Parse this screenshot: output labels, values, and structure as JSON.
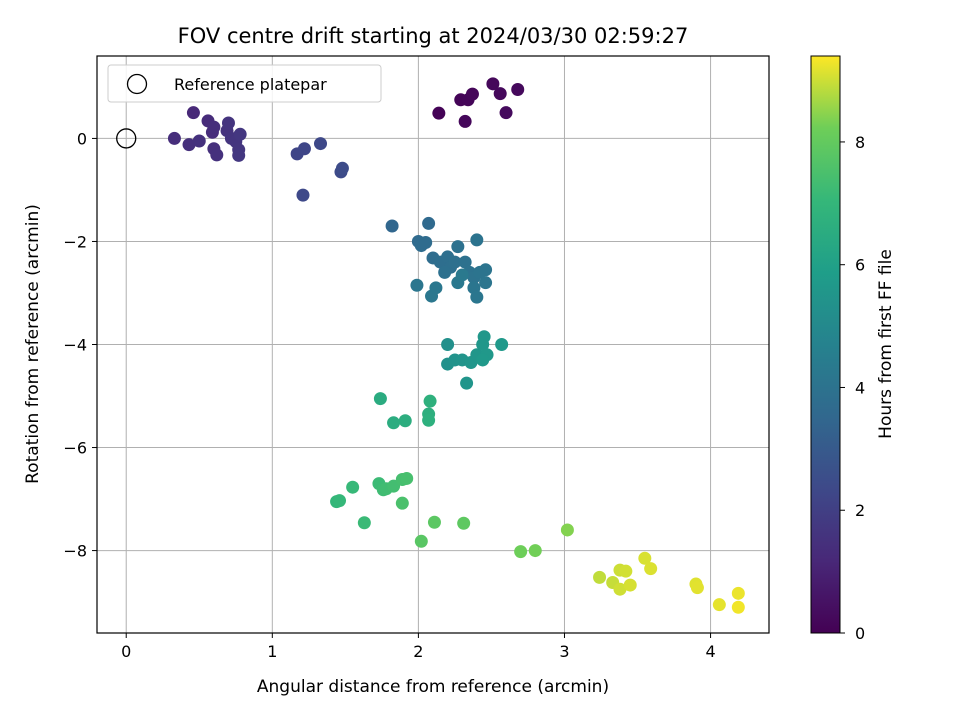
{
  "chart_data": {
    "type": "scatter",
    "title": "FOV centre drift starting at 2024/03/30 02:59:27",
    "xlabel": "Angular distance from reference (arcmin)",
    "ylabel": "Rotation from reference (arcmin)",
    "xlim": [
      -0.2,
      4.4
    ],
    "ylim": [
      -9.6,
      1.6
    ],
    "xticks": [
      0,
      1,
      2,
      3,
      4
    ],
    "yticks": [
      0,
      -2,
      -4,
      -6,
      -8
    ],
    "grid": true,
    "legend": {
      "location": "upper-left",
      "entries": [
        {
          "label": "Reference platepar",
          "marker": "open-circle"
        }
      ]
    },
    "reference": {
      "x": 0,
      "y": 0
    },
    "colorbar": {
      "label": "Hours from first FF file",
      "range": [
        0,
        9.4
      ],
      "ticks": [
        0,
        2,
        4,
        6,
        8
      ],
      "colormap": "viridis"
    },
    "points": [
      {
        "x": 2.14,
        "y": 0.49,
        "t": 0.05
      },
      {
        "x": 2.29,
        "y": 0.75,
        "t": 0.1
      },
      {
        "x": 2.34,
        "y": 0.75,
        "t": 0.12
      },
      {
        "x": 2.37,
        "y": 0.86,
        "t": 0.15
      },
      {
        "x": 2.32,
        "y": 0.33,
        "t": 0.18
      },
      {
        "x": 2.51,
        "y": 1.06,
        "t": 0.2
      },
      {
        "x": 2.56,
        "y": 0.87,
        "t": 0.22
      },
      {
        "x": 2.68,
        "y": 0.95,
        "t": 0.25
      },
      {
        "x": 2.6,
        "y": 0.5,
        "t": 0.28
      },
      {
        "x": 0.46,
        "y": 0.5,
        "t": 1.2
      },
      {
        "x": 0.33,
        "y": 0.0,
        "t": 1.4
      },
      {
        "x": 0.43,
        "y": -0.12,
        "t": 1.45
      },
      {
        "x": 0.5,
        "y": -0.05,
        "t": 1.5
      },
      {
        "x": 0.56,
        "y": 0.34,
        "t": 1.3
      },
      {
        "x": 0.59,
        "y": 0.12,
        "t": 1.35
      },
      {
        "x": 0.6,
        "y": 0.22,
        "t": 1.4
      },
      {
        "x": 0.6,
        "y": -0.2,
        "t": 1.45
      },
      {
        "x": 0.62,
        "y": -0.32,
        "t": 1.5
      },
      {
        "x": 0.69,
        "y": 0.15,
        "t": 1.55
      },
      {
        "x": 0.7,
        "y": 0.3,
        "t": 1.6
      },
      {
        "x": 0.72,
        "y": 0.0,
        "t": 1.62
      },
      {
        "x": 0.75,
        "y": -0.06,
        "t": 1.65
      },
      {
        "x": 0.77,
        "y": -0.22,
        "t": 1.68
      },
      {
        "x": 0.78,
        "y": 0.08,
        "t": 1.7
      },
      {
        "x": 0.77,
        "y": -0.33,
        "t": 1.72
      },
      {
        "x": 1.17,
        "y": -0.3,
        "t": 2.2
      },
      {
        "x": 1.22,
        "y": -0.2,
        "t": 2.25
      },
      {
        "x": 1.33,
        "y": -0.1,
        "t": 2.3
      },
      {
        "x": 1.21,
        "y": -1.1,
        "t": 2.35
      },
      {
        "x": 1.47,
        "y": -0.65,
        "t": 2.4
      },
      {
        "x": 1.48,
        "y": -0.58,
        "t": 2.45
      },
      {
        "x": 1.82,
        "y": -1.7,
        "t": 3.5
      },
      {
        "x": 2.07,
        "y": -1.65,
        "t": 3.6
      },
      {
        "x": 2.0,
        "y": -2.0,
        "t": 3.65
      },
      {
        "x": 2.02,
        "y": -2.08,
        "t": 3.7
      },
      {
        "x": 2.05,
        "y": -2.02,
        "t": 3.72
      },
      {
        "x": 2.1,
        "y": -2.32,
        "t": 3.75
      },
      {
        "x": 2.15,
        "y": -2.4,
        "t": 3.8
      },
      {
        "x": 2.2,
        "y": -2.3,
        "t": 3.82
      },
      {
        "x": 2.22,
        "y": -2.5,
        "t": 3.85
      },
      {
        "x": 2.25,
        "y": -2.4,
        "t": 3.88
      },
      {
        "x": 2.18,
        "y": -2.6,
        "t": 3.9
      },
      {
        "x": 2.27,
        "y": -2.1,
        "t": 3.92
      },
      {
        "x": 2.32,
        "y": -2.4,
        "t": 3.95
      },
      {
        "x": 2.35,
        "y": -2.6,
        "t": 3.98
      },
      {
        "x": 2.38,
        "y": -2.7,
        "t": 4.0
      },
      {
        "x": 2.4,
        "y": -1.97,
        "t": 4.02
      },
      {
        "x": 2.42,
        "y": -2.6,
        "t": 4.05
      },
      {
        "x": 2.46,
        "y": -2.55,
        "t": 4.08
      },
      {
        "x": 2.46,
        "y": -2.8,
        "t": 4.1
      },
      {
        "x": 2.38,
        "y": -2.9,
        "t": 4.12
      },
      {
        "x": 2.4,
        "y": -3.08,
        "t": 4.15
      },
      {
        "x": 1.99,
        "y": -2.85,
        "t": 4.18
      },
      {
        "x": 2.09,
        "y": -3.06,
        "t": 4.2
      },
      {
        "x": 2.12,
        "y": -2.9,
        "t": 4.22
      },
      {
        "x": 2.27,
        "y": -2.8,
        "t": 4.25
      },
      {
        "x": 2.3,
        "y": -2.65,
        "t": 4.28
      },
      {
        "x": 2.2,
        "y": -4.0,
        "t": 5.3
      },
      {
        "x": 2.2,
        "y": -4.38,
        "t": 5.35
      },
      {
        "x": 2.25,
        "y": -4.3,
        "t": 5.4
      },
      {
        "x": 2.3,
        "y": -4.3,
        "t": 5.45
      },
      {
        "x": 2.33,
        "y": -4.75,
        "t": 5.5
      },
      {
        "x": 2.36,
        "y": -4.35,
        "t": 5.52
      },
      {
        "x": 2.4,
        "y": -4.2,
        "t": 5.55
      },
      {
        "x": 2.44,
        "y": -4.0,
        "t": 5.58
      },
      {
        "x": 2.45,
        "y": -3.85,
        "t": 5.6
      },
      {
        "x": 2.47,
        "y": -4.2,
        "t": 5.62
      },
      {
        "x": 2.44,
        "y": -4.3,
        "t": 5.65
      },
      {
        "x": 2.57,
        "y": -4.0,
        "t": 5.68
      },
      {
        "x": 1.74,
        "y": -5.05,
        "t": 6.5
      },
      {
        "x": 1.83,
        "y": -5.52,
        "t": 6.55
      },
      {
        "x": 1.91,
        "y": -5.48,
        "t": 6.6
      },
      {
        "x": 2.07,
        "y": -5.35,
        "t": 6.65
      },
      {
        "x": 2.07,
        "y": -5.47,
        "t": 6.7
      },
      {
        "x": 2.08,
        "y": -5.1,
        "t": 6.72
      },
      {
        "x": 1.44,
        "y": -7.05,
        "t": 7.0
      },
      {
        "x": 1.46,
        "y": -7.03,
        "t": 7.05
      },
      {
        "x": 1.55,
        "y": -6.77,
        "t": 7.1
      },
      {
        "x": 1.63,
        "y": -7.46,
        "t": 7.15
      },
      {
        "x": 1.73,
        "y": -6.7,
        "t": 7.2
      },
      {
        "x": 1.76,
        "y": -6.82,
        "t": 7.25
      },
      {
        "x": 1.78,
        "y": -6.8,
        "t": 7.3
      },
      {
        "x": 1.83,
        "y": -6.75,
        "t": 7.35
      },
      {
        "x": 1.89,
        "y": -6.62,
        "t": 7.4
      },
      {
        "x": 1.92,
        "y": -6.6,
        "t": 7.45
      },
      {
        "x": 1.89,
        "y": -7.08,
        "t": 7.5
      },
      {
        "x": 2.02,
        "y": -7.82,
        "t": 7.8
      },
      {
        "x": 2.11,
        "y": -7.45,
        "t": 7.85
      },
      {
        "x": 2.31,
        "y": -7.47,
        "t": 7.9
      },
      {
        "x": 2.7,
        "y": -8.02,
        "t": 8.2
      },
      {
        "x": 2.8,
        "y": -8.0,
        "t": 8.25
      },
      {
        "x": 3.02,
        "y": -7.6,
        "t": 8.4
      },
      {
        "x": 3.24,
        "y": -8.52,
        "t": 8.9
      },
      {
        "x": 3.33,
        "y": -8.62,
        "t": 8.95
      },
      {
        "x": 3.38,
        "y": -8.38,
        "t": 9.0
      },
      {
        "x": 3.38,
        "y": -8.75,
        "t": 9.02
      },
      {
        "x": 3.42,
        "y": -8.4,
        "t": 9.05
      },
      {
        "x": 3.45,
        "y": -8.67,
        "t": 9.08
      },
      {
        "x": 3.55,
        "y": -8.15,
        "t": 9.1
      },
      {
        "x": 3.59,
        "y": -8.35,
        "t": 9.12
      },
      {
        "x": 3.9,
        "y": -8.65,
        "t": 9.15
      },
      {
        "x": 3.91,
        "y": -8.72,
        "t": 9.18
      },
      {
        "x": 4.06,
        "y": -9.05,
        "t": 9.2
      },
      {
        "x": 4.19,
        "y": -8.83,
        "t": 9.25
      },
      {
        "x": 4.19,
        "y": -9.1,
        "t": 9.3
      }
    ]
  }
}
